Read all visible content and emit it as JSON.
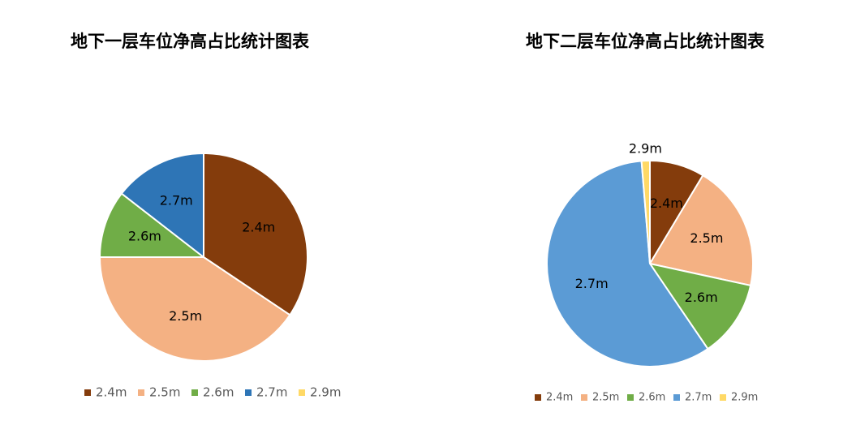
{
  "chart_data": [
    {
      "type": "pie",
      "title": "地下一层车位净高占比统计图表",
      "categories": [
        "2.4m",
        "2.5m",
        "2.6m",
        "2.7m",
        "2.9m"
      ],
      "values": [
        34.4,
        40.6,
        10.5,
        14.5,
        0
      ],
      "colors": [
        "#843c0c",
        "#f4b183",
        "#70ad47",
        "#2e75b6",
        "#ffd966"
      ]
    },
    {
      "type": "pie",
      "title": "地下二层车位净高占比统计图表",
      "categories": [
        "2.4m",
        "2.5m",
        "2.6m",
        "2.7m",
        "2.9m"
      ],
      "values": [
        8.6,
        19.8,
        12.1,
        58.2,
        1.3
      ],
      "colors": [
        "#843c0c",
        "#f4b183",
        "#70ad47",
        "#5b9bd5",
        "#ffd966"
      ]
    }
  ]
}
